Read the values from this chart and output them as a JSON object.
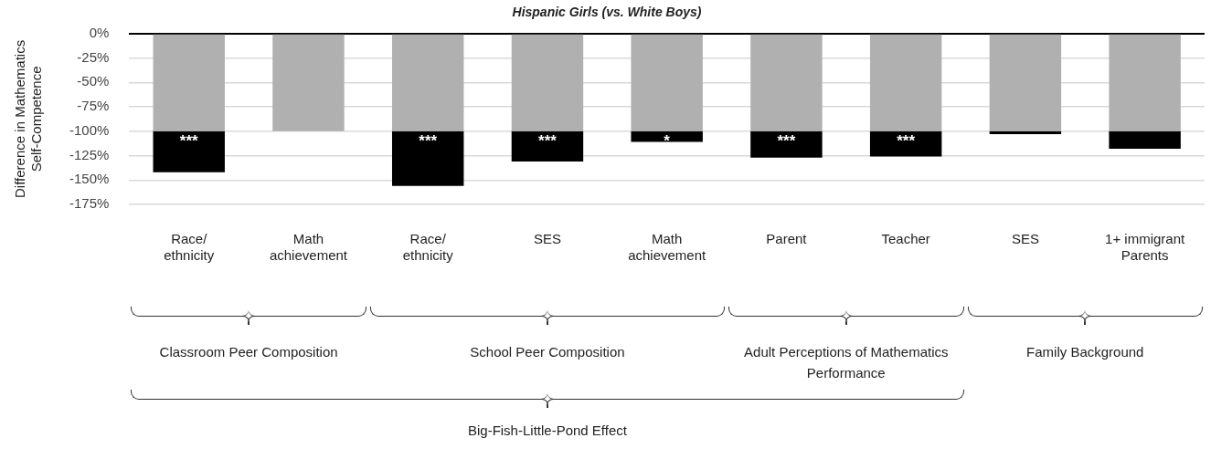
{
  "chart_data": {
    "type": "bar",
    "stacked": true,
    "title": "Hispanic Girls (vs. White Boys)",
    "ylabel": "Difference in Mathematics\nSelf-Competence",
    "categories": [
      "Race/\nethnicity",
      "Math\nachievement",
      "Race/\nethnicity",
      "SES",
      "Math\nachievement",
      "Parent",
      "Teacher",
      "SES",
      "1+ immigrant\nParents"
    ],
    "series": [
      {
        "color": "#b0b0b0",
        "values": [
          -100,
          -100,
          -100,
          -100,
          -100,
          -100,
          -100,
          -100,
          -100
        ]
      },
      {
        "color": "#000000",
        "values": [
          -42,
          null,
          -56,
          -31,
          -11,
          -27,
          -26,
          -3,
          -18
        ],
        "value_labels": [
          "***",
          null,
          "***",
          "***",
          "*",
          "***",
          "***",
          null,
          null
        ]
      }
    ],
    "ylim": [
      -175,
      0
    ],
    "yticks": [
      {
        "value": 0,
        "label": "0%"
      },
      {
        "value": -25,
        "label": "-25%"
      },
      {
        "value": -50,
        "label": "-50%"
      },
      {
        "value": -75,
        "label": "-75%"
      },
      {
        "value": -100,
        "label": "-100%"
      },
      {
        "value": -125,
        "label": "-125%"
      },
      {
        "value": -150,
        "label": "-150%"
      },
      {
        "value": -175,
        "label": "-175%"
      }
    ],
    "grid": "y",
    "legend": false,
    "annotations": [
      "Classroom Peer Composition",
      "School Peer Composition",
      "Adult Perceptions of Mathematics\nPerformance",
      "Family Background",
      "Big-Fish-Little-Pond Effect"
    ]
  }
}
